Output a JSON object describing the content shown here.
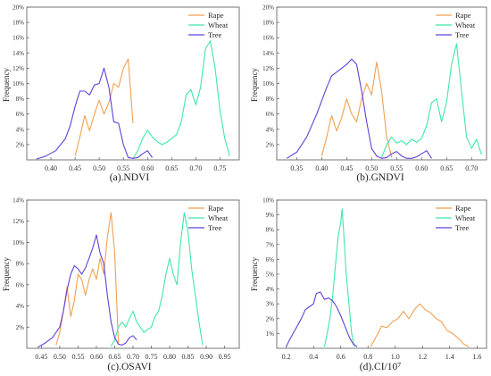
{
  "chart_data": [
    {
      "type": "line",
      "title": "(a).NDVI",
      "xlabel": "",
      "ylabel": "Frequency",
      "xlim": [
        0.35,
        0.79
      ],
      "ylim": [
        0,
        20
      ],
      "xticks": [
        "0.40",
        "0.45",
        "0.50",
        "0.55",
        "0.60",
        "0.65",
        "0.70",
        "0.75"
      ],
      "yticks": [
        "2%",
        "4%",
        "6%",
        "8%",
        "10%",
        "12%",
        "14%",
        "16%",
        "18%",
        "20%"
      ],
      "grid": false,
      "legend": "top-center",
      "series": [
        {
          "name": "Rape",
          "color": "#f0a050",
          "x": [
            0.45,
            0.46,
            0.47,
            0.48,
            0.49,
            0.5,
            0.51,
            0.52,
            0.53,
            0.54,
            0.55,
            0.56,
            0.57
          ],
          "y": [
            0.5,
            3.0,
            5.8,
            3.8,
            6.0,
            7.8,
            6.0,
            7.5,
            10.0,
            9.5,
            12.0,
            13.2,
            4.8
          ]
        },
        {
          "name": "Wheat",
          "color": "#3ee8a8",
          "x": [
            0.57,
            0.58,
            0.59,
            0.6,
            0.61,
            0.62,
            0.63,
            0.64,
            0.65,
            0.66,
            0.67,
            0.68,
            0.69,
            0.7,
            0.71,
            0.72,
            0.73,
            0.74,
            0.75,
            0.76,
            0.77
          ],
          "y": [
            0.2,
            1.2,
            2.8,
            3.9,
            3.0,
            2.4,
            2.0,
            2.3,
            2.8,
            3.3,
            5.0,
            8.5,
            9.2,
            7.2,
            9.5,
            14.5,
            15.6,
            12.0,
            6.5,
            2.8,
            0.5
          ]
        },
        {
          "name": "Tree",
          "color": "#6040d8",
          "x": [
            0.37,
            0.39,
            0.41,
            0.43,
            0.44,
            0.45,
            0.46,
            0.47,
            0.48,
            0.49,
            0.5,
            0.51,
            0.52,
            0.53,
            0.54,
            0.55,
            0.56,
            0.57,
            0.58,
            0.59,
            0.6,
            0.61
          ],
          "y": [
            0.1,
            0.5,
            1.2,
            2.8,
            4.5,
            7.0,
            9.0,
            9.0,
            8.5,
            9.8,
            10.0,
            12.0,
            9.5,
            5.0,
            4.8,
            2.0,
            0.3,
            0.2,
            0.3,
            0.8,
            1.2,
            0.3
          ]
        }
      ]
    },
    {
      "type": "line",
      "title": "(b).GNDVI",
      "xlabel": "",
      "ylabel": "Frequency",
      "xlim": [
        0.31,
        0.73
      ],
      "ylim": [
        0,
        20
      ],
      "xticks": [
        "0.35",
        "0.40",
        "0.45",
        "0.50",
        "0.55",
        "0.60",
        "0.65",
        "0.70"
      ],
      "yticks": [
        "2%",
        "4%",
        "6%",
        "8%",
        "10%",
        "12%",
        "14%",
        "16%",
        "18%",
        "20%"
      ],
      "grid": false,
      "legend": "top-center",
      "series": [
        {
          "name": "Rape",
          "color": "#f0a050",
          "x": [
            0.4,
            0.41,
            0.42,
            0.43,
            0.44,
            0.45,
            0.46,
            0.47,
            0.48,
            0.49,
            0.5,
            0.51,
            0.52,
            0.53,
            0.54
          ],
          "y": [
            0.5,
            3.0,
            5.8,
            3.8,
            5.5,
            8.0,
            6.0,
            5.0,
            8.0,
            10.0,
            8.5,
            12.8,
            9.0,
            3.0,
            0.3
          ]
        },
        {
          "name": "Wheat",
          "color": "#3ee8a8",
          "x": [
            0.52,
            0.53,
            0.54,
            0.55,
            0.56,
            0.57,
            0.58,
            0.59,
            0.6,
            0.61,
            0.62,
            0.63,
            0.64,
            0.65,
            0.66,
            0.67,
            0.68,
            0.69,
            0.7,
            0.71,
            0.72
          ],
          "y": [
            0.3,
            2.0,
            3.0,
            2.2,
            2.5,
            2.0,
            2.7,
            2.3,
            2.8,
            4.5,
            7.5,
            8.0,
            5.0,
            7.5,
            12.5,
            15.2,
            9.0,
            3.0,
            1.5,
            2.7,
            0.7
          ]
        },
        {
          "name": "Tree",
          "color": "#6040d8",
          "x": [
            0.33,
            0.35,
            0.37,
            0.39,
            0.41,
            0.42,
            0.43,
            0.44,
            0.45,
            0.46,
            0.47,
            0.48,
            0.49,
            0.5,
            0.51,
            0.52,
            0.53,
            0.54,
            0.55,
            0.56,
            0.57,
            0.58,
            0.59,
            0.6,
            0.61,
            0.62
          ],
          "y": [
            0.2,
            1.0,
            3.0,
            6.0,
            9.5,
            11.0,
            11.5,
            12.0,
            12.5,
            13.2,
            12.5,
            9.0,
            5.0,
            1.5,
            0.5,
            0.2,
            0.3,
            0.8,
            1.1,
            0.5,
            0.2,
            0.2,
            0.4,
            0.8,
            1.2,
            0.2
          ]
        }
      ]
    },
    {
      "type": "line",
      "title": "(c).OSAVI",
      "xlabel": "",
      "ylabel": "Frequency",
      "xlim": [
        0.41,
        0.99
      ],
      "ylim": [
        0,
        14
      ],
      "xticks": [
        "0.45",
        "0.50",
        "0.55",
        "0.60",
        "0.65",
        "0.70",
        "0.75",
        "0.80",
        "0.85",
        "0.90",
        "0.95"
      ],
      "yticks": [
        "2%",
        "4%",
        "6%",
        "8%",
        "10%",
        "12%",
        "14%"
      ],
      "grid": false,
      "legend": "top-center",
      "series": [
        {
          "name": "Rape",
          "color": "#f0a050",
          "x": [
            0.49,
            0.5,
            0.51,
            0.52,
            0.53,
            0.54,
            0.55,
            0.56,
            0.57,
            0.58,
            0.59,
            0.6,
            0.61,
            0.62,
            0.63,
            0.64,
            0.65,
            0.66
          ],
          "y": [
            0.3,
            1.5,
            3.5,
            5.8,
            3.0,
            4.5,
            7.0,
            6.5,
            5.0,
            6.5,
            7.5,
            6.5,
            8.5,
            7.0,
            10.5,
            12.8,
            9.0,
            0.5
          ]
        },
        {
          "name": "Wheat",
          "color": "#3ee8a8",
          "x": [
            0.64,
            0.65,
            0.66,
            0.67,
            0.68,
            0.69,
            0.7,
            0.71,
            0.72,
            0.73,
            0.74,
            0.75,
            0.76,
            0.77,
            0.78,
            0.79,
            0.8,
            0.81,
            0.82,
            0.83,
            0.84,
            0.85,
            0.86,
            0.87,
            0.88,
            0.89
          ],
          "y": [
            0.2,
            0.8,
            2.0,
            2.5,
            2.0,
            2.8,
            3.5,
            2.5,
            2.0,
            1.5,
            1.8,
            2.0,
            3.0,
            3.5,
            5.0,
            7.0,
            8.5,
            7.0,
            6.0,
            10.0,
            12.8,
            11.0,
            7.5,
            5.0,
            2.5,
            0.3
          ]
        },
        {
          "name": "Tree",
          "color": "#6040d8",
          "x": [
            0.44,
            0.46,
            0.48,
            0.5,
            0.51,
            0.52,
            0.53,
            0.54,
            0.55,
            0.56,
            0.57,
            0.58,
            0.59,
            0.6,
            0.61,
            0.62,
            0.63,
            0.64,
            0.65,
            0.66,
            0.67,
            0.68,
            0.69,
            0.7,
            0.71
          ],
          "y": [
            0.1,
            0.5,
            1.0,
            2.0,
            3.5,
            5.5,
            7.0,
            7.8,
            7.5,
            7.0,
            7.6,
            8.5,
            9.5,
            10.7,
            9.0,
            8.0,
            5.0,
            2.5,
            1.0,
            0.4,
            0.3,
            0.5,
            1.0,
            1.2,
            0.8
          ]
        }
      ]
    },
    {
      "type": "line",
      "title": "(d).CI/10⁷",
      "xlabel": "",
      "ylabel": "Frequency",
      "xlim": [
        0.13,
        1.67
      ],
      "ylim": [
        0,
        10
      ],
      "xticks": [
        "0.2",
        "0.4",
        "0.6",
        "0.8",
        "1.0",
        "1.2",
        "1.4",
        "1.6"
      ],
      "yticks": [
        "1%",
        "2%",
        "3%",
        "4%",
        "5%",
        "6%",
        "7%",
        "8%",
        "9%",
        "10%"
      ],
      "grid": false,
      "legend": "top-right",
      "series": [
        {
          "name": "Rape",
          "color": "#f0a050",
          "x": [
            0.82,
            0.86,
            0.9,
            0.94,
            0.98,
            1.02,
            1.06,
            1.1,
            1.14,
            1.18,
            1.22,
            1.26,
            1.3,
            1.34,
            1.38,
            1.42,
            1.46,
            1.5,
            1.54
          ],
          "y": [
            0.1,
            0.8,
            1.5,
            1.4,
            1.8,
            2.0,
            2.5,
            2.0,
            2.6,
            3.0,
            2.6,
            2.4,
            2.0,
            1.8,
            1.2,
            1.0,
            0.7,
            0.3,
            0.1
          ]
        },
        {
          "name": "Wheat",
          "color": "#3ee8a8",
          "x": [
            0.48,
            0.5,
            0.52,
            0.54,
            0.56,
            0.58,
            0.6,
            0.61,
            0.62,
            0.64,
            0.66,
            0.68,
            0.7
          ],
          "y": [
            0.1,
            1.0,
            2.0,
            3.5,
            5.5,
            7.5,
            8.5,
            9.4,
            8.0,
            5.0,
            3.0,
            1.0,
            0.1
          ]
        },
        {
          "name": "Tree",
          "color": "#6040d8",
          "x": [
            0.2,
            0.22,
            0.25,
            0.28,
            0.31,
            0.34,
            0.37,
            0.4,
            0.42,
            0.45,
            0.48,
            0.51,
            0.54,
            0.57,
            0.6,
            0.63,
            0.66,
            0.69,
            0.72
          ],
          "y": [
            0.1,
            0.5,
            1.0,
            1.5,
            2.0,
            2.6,
            2.8,
            3.0,
            3.7,
            3.8,
            3.3,
            3.4,
            3.2,
            2.8,
            2.2,
            1.5,
            0.8,
            0.3,
            0.1
          ]
        }
      ]
    }
  ]
}
